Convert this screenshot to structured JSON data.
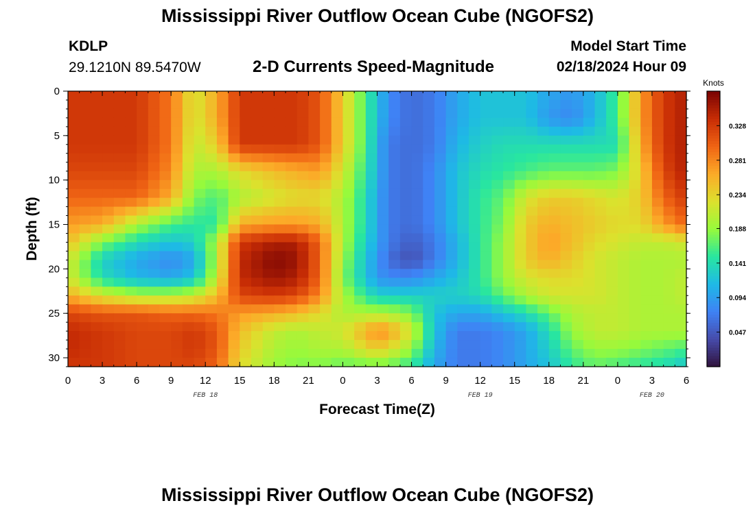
{
  "page": {
    "title_top": "Mississippi River Outflow Ocean Cube (NGOFS2)",
    "title_bottom": "Mississippi River Outflow Ocean Cube (NGOFS2)",
    "station": "KDLP",
    "coordinates": "29.1210N  89.5470W",
    "subtitle": "2-D Currents Speed-Magnitude",
    "model_start_label": "Model Start Time",
    "model_start_value": "02/18/2024 Hour 09"
  },
  "chart_data": {
    "type": "heatmap",
    "title": "2-D Currents Speed-Magnitude",
    "xlabel": "Forecast Time(Z)",
    "ylabel": "Depth (ft)",
    "x_tick_labels": [
      "0",
      "3",
      "6",
      "9",
      "12",
      "15",
      "18",
      "21",
      "0",
      "3",
      "6",
      "9",
      "12",
      "15",
      "18",
      "21",
      "0",
      "3",
      "6"
    ],
    "x_hours": [
      0,
      3,
      6,
      9,
      12,
      15,
      18,
      21,
      24,
      27,
      30,
      33,
      36,
      39,
      42,
      45,
      48,
      51,
      54
    ],
    "xlim": [
      0,
      54
    ],
    "date_labels": [
      {
        "text": "FEB 18",
        "hour": 12
      },
      {
        "text": "FEB 19",
        "hour": 36
      },
      {
        "text": "FEB 20",
        "hour": 51
      }
    ],
    "y_ticks": [
      0,
      5,
      10,
      15,
      20,
      25,
      30
    ],
    "ylim": [
      0,
      31
    ],
    "y_direction": "depth increasing downward",
    "colorbar": {
      "label": "Knots",
      "ticks": [
        0.047,
        0.094,
        0.141,
        0.188,
        0.234,
        0.281,
        0.328
      ],
      "range": [
        0.0,
        0.375
      ],
      "colormap": "turbo"
    },
    "grid": false,
    "speed_knots": {
      "hours": [
        0,
        3,
        6,
        9,
        11,
        13,
        15,
        18,
        20,
        22,
        24,
        26,
        27,
        28,
        30,
        32,
        34,
        36,
        38,
        40,
        42,
        44,
        46,
        48,
        50,
        52,
        54
      ],
      "depths": [
        0,
        3,
        6,
        9,
        12,
        15,
        17,
        19,
        21,
        23,
        25,
        27,
        29,
        31
      ],
      "values": [
        [
          0.33,
          0.33,
          0.33,
          0.29,
          0.22,
          0.26,
          0.33,
          0.33,
          0.33,
          0.31,
          0.24,
          0.16,
          0.12,
          0.08,
          0.06,
          0.07,
          0.1,
          0.12,
          0.12,
          0.12,
          0.1,
          0.09,
          0.11,
          0.16,
          0.27,
          0.33,
          0.35
        ],
        [
          0.33,
          0.33,
          0.33,
          0.29,
          0.22,
          0.26,
          0.33,
          0.33,
          0.33,
          0.31,
          0.24,
          0.16,
          0.12,
          0.08,
          0.06,
          0.07,
          0.1,
          0.12,
          0.12,
          0.12,
          0.09,
          0.08,
          0.11,
          0.16,
          0.27,
          0.33,
          0.35
        ],
        [
          0.33,
          0.33,
          0.33,
          0.29,
          0.21,
          0.24,
          0.33,
          0.33,
          0.33,
          0.31,
          0.24,
          0.16,
          0.11,
          0.07,
          0.06,
          0.07,
          0.11,
          0.13,
          0.14,
          0.14,
          0.14,
          0.14,
          0.14,
          0.14,
          0.26,
          0.33,
          0.35
        ],
        [
          0.32,
          0.32,
          0.32,
          0.28,
          0.2,
          0.2,
          0.23,
          0.25,
          0.26,
          0.27,
          0.22,
          0.15,
          0.11,
          0.07,
          0.06,
          0.08,
          0.12,
          0.14,
          0.15,
          0.16,
          0.17,
          0.17,
          0.17,
          0.18,
          0.24,
          0.32,
          0.35
        ],
        [
          0.3,
          0.3,
          0.3,
          0.26,
          0.18,
          0.16,
          0.2,
          0.22,
          0.23,
          0.23,
          0.2,
          0.14,
          0.1,
          0.07,
          0.06,
          0.08,
          0.12,
          0.15,
          0.17,
          0.22,
          0.24,
          0.24,
          0.23,
          0.22,
          0.24,
          0.3,
          0.33
        ],
        [
          0.27,
          0.26,
          0.2,
          0.16,
          0.15,
          0.15,
          0.26,
          0.27,
          0.27,
          0.26,
          0.2,
          0.14,
          0.1,
          0.07,
          0.06,
          0.08,
          0.12,
          0.15,
          0.18,
          0.24,
          0.26,
          0.25,
          0.24,
          0.23,
          0.23,
          0.27,
          0.3
        ],
        [
          0.25,
          0.18,
          0.14,
          0.12,
          0.13,
          0.2,
          0.33,
          0.35,
          0.35,
          0.3,
          0.2,
          0.13,
          0.1,
          0.07,
          0.05,
          0.07,
          0.11,
          0.15,
          0.19,
          0.24,
          0.27,
          0.25,
          0.23,
          0.22,
          0.21,
          0.21,
          0.22
        ],
        [
          0.22,
          0.13,
          0.1,
          0.08,
          0.1,
          0.2,
          0.34,
          0.37,
          0.36,
          0.3,
          0.19,
          0.12,
          0.09,
          0.06,
          0.04,
          0.07,
          0.11,
          0.15,
          0.19,
          0.24,
          0.26,
          0.24,
          0.22,
          0.21,
          0.2,
          0.2,
          0.2
        ],
        [
          0.22,
          0.14,
          0.11,
          0.1,
          0.12,
          0.21,
          0.34,
          0.36,
          0.35,
          0.3,
          0.18,
          0.12,
          0.09,
          0.08,
          0.08,
          0.1,
          0.12,
          0.15,
          0.19,
          0.22,
          0.23,
          0.23,
          0.22,
          0.21,
          0.2,
          0.2,
          0.21
        ],
        [
          0.26,
          0.22,
          0.2,
          0.2,
          0.21,
          0.25,
          0.32,
          0.33,
          0.32,
          0.28,
          0.2,
          0.15,
          0.13,
          0.13,
          0.13,
          0.13,
          0.13,
          0.14,
          0.17,
          0.2,
          0.22,
          0.22,
          0.22,
          0.21,
          0.2,
          0.2,
          0.21
        ],
        [
          0.32,
          0.31,
          0.31,
          0.3,
          0.3,
          0.29,
          0.27,
          0.26,
          0.25,
          0.23,
          0.2,
          0.2,
          0.2,
          0.2,
          0.18,
          0.12,
          0.1,
          0.1,
          0.12,
          0.14,
          0.17,
          0.2,
          0.21,
          0.21,
          0.2,
          0.2,
          0.2
        ],
        [
          0.34,
          0.33,
          0.32,
          0.32,
          0.33,
          0.31,
          0.25,
          0.21,
          0.2,
          0.21,
          0.22,
          0.26,
          0.28,
          0.27,
          0.22,
          0.12,
          0.07,
          0.07,
          0.08,
          0.1,
          0.14,
          0.19,
          0.21,
          0.21,
          0.2,
          0.2,
          0.2
        ],
        [
          0.34,
          0.33,
          0.32,
          0.32,
          0.33,
          0.31,
          0.24,
          0.2,
          0.19,
          0.2,
          0.2,
          0.23,
          0.24,
          0.23,
          0.19,
          0.11,
          0.07,
          0.07,
          0.08,
          0.1,
          0.13,
          0.17,
          0.19,
          0.19,
          0.18,
          0.17,
          0.16
        ],
        [
          0.33,
          0.33,
          0.32,
          0.32,
          0.32,
          0.3,
          0.23,
          0.19,
          0.18,
          0.18,
          0.17,
          0.17,
          0.17,
          0.17,
          0.15,
          0.1,
          0.07,
          0.07,
          0.08,
          0.1,
          0.12,
          0.15,
          0.17,
          0.16,
          0.15,
          0.14,
          0.12
        ]
      ]
    }
  }
}
